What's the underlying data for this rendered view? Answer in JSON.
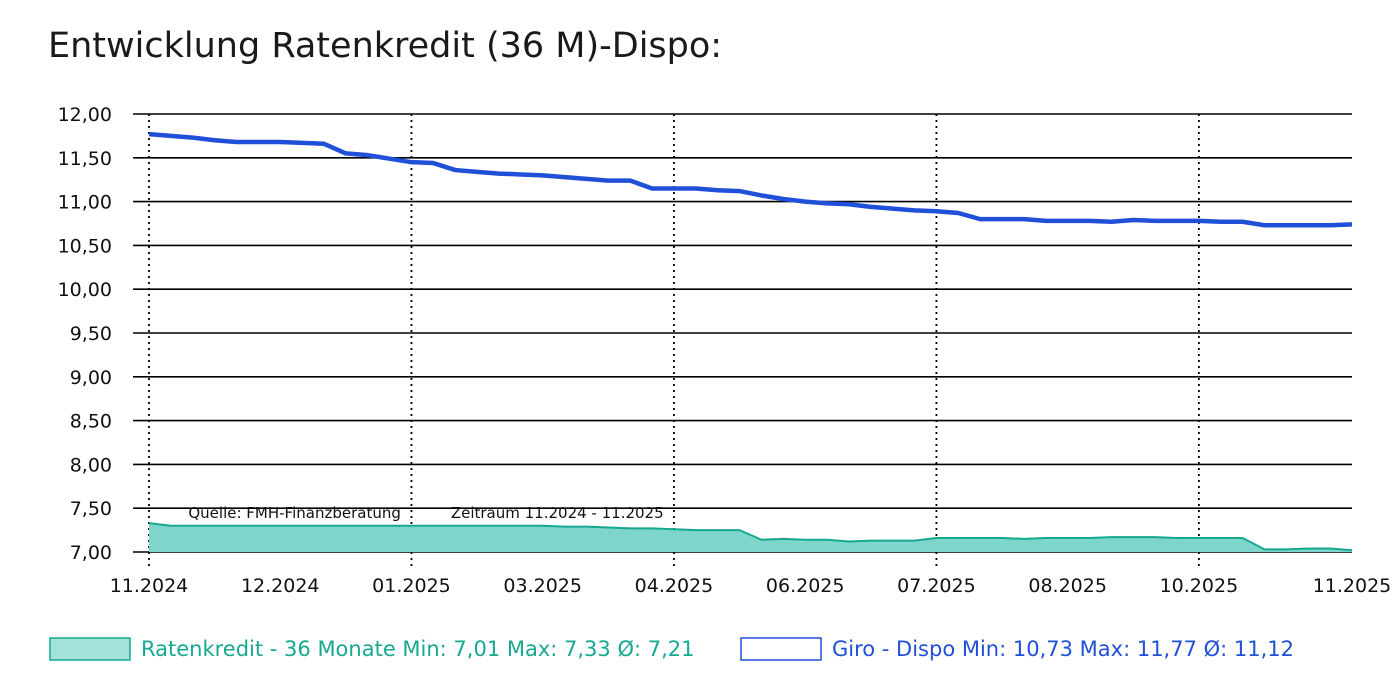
{
  "colors": {
    "series1_line": "#17a890",
    "series1_fill": "#7dd6c9",
    "series2_line": "#2050d8",
    "grid": "#000000",
    "text": "#111111"
  },
  "chart_data": {
    "type": "area",
    "title": "Entwicklung Ratenkredit (36 M)-Dispo:",
    "xlabel": "",
    "ylabel": "",
    "ylim": [
      7.0,
      12.0
    ],
    "y_ticks": [
      {
        "value": 12.0,
        "label": "12,00"
      },
      {
        "value": 11.5,
        "label": "11,50"
      },
      {
        "value": 11.0,
        "label": "11,00"
      },
      {
        "value": 10.5,
        "label": "10,50"
      },
      {
        "value": 10.0,
        "label": "10,00"
      },
      {
        "value": 9.5,
        "label": "9,50"
      },
      {
        "value": 9.0,
        "label": "9,00"
      },
      {
        "value": 8.5,
        "label": "8,50"
      },
      {
        "value": 8.0,
        "label": "8,00"
      },
      {
        "value": 7.5,
        "label": "7,50"
      },
      {
        "value": 7.0,
        "label": "7,00"
      }
    ],
    "x_range": [
      0,
      55
    ],
    "x_ticks": [
      {
        "x": 0,
        "label": "11.2024"
      },
      {
        "x": 6,
        "label": "12.2024"
      },
      {
        "x": 12,
        "label": "01.2025"
      },
      {
        "x": 18,
        "label": "03.2025"
      },
      {
        "x": 24,
        "label": "04.2025"
      },
      {
        "x": 30,
        "label": "06.2025"
      },
      {
        "x": 36,
        "label": "07.2025"
      },
      {
        "x": 42,
        "label": "08.2025"
      },
      {
        "x": 48,
        "label": "10.2025"
      },
      {
        "x": 55,
        "label": "11.2025"
      }
    ],
    "vgrid_x": [
      0,
      12,
      24,
      36,
      48
    ],
    "annotations": [
      {
        "text": "Quelle: FMH-Finanzberatung",
        "x": 1.8,
        "y": 7.33
      },
      {
        "text": "Zeitraum 11.2024 - 11.2025",
        "x": 13.8,
        "y": 7.33
      }
    ],
    "series": [
      {
        "name": "Ratenkredit - 36 Monate",
        "style": "area",
        "legend_text": "Ratenkredit - 36 Monate Min: 7,01 Max: 7,33 Ø: 7,21",
        "min": "7,01",
        "max": "7,33",
        "avg": "7,21",
        "x": [
          0,
          1,
          2,
          3,
          4,
          5,
          6,
          7,
          8,
          9,
          10,
          11,
          12,
          13,
          14,
          15,
          16,
          17,
          18,
          19,
          20,
          21,
          22,
          23,
          24,
          25,
          26,
          27,
          28,
          29,
          30,
          31,
          32,
          33,
          34,
          35,
          36,
          37,
          38,
          39,
          40,
          41,
          42,
          43,
          44,
          45,
          46,
          47,
          48,
          49,
          50,
          51,
          52,
          53,
          54,
          55
        ],
        "values": [
          7.33,
          7.3,
          7.3,
          7.3,
          7.3,
          7.3,
          7.3,
          7.3,
          7.3,
          7.3,
          7.3,
          7.3,
          7.3,
          7.3,
          7.3,
          7.3,
          7.3,
          7.3,
          7.3,
          7.29,
          7.29,
          7.28,
          7.27,
          7.27,
          7.26,
          7.25,
          7.25,
          7.25,
          7.14,
          7.15,
          7.14,
          7.14,
          7.12,
          7.13,
          7.13,
          7.13,
          7.16,
          7.16,
          7.16,
          7.16,
          7.15,
          7.16,
          7.16,
          7.16,
          7.17,
          7.17,
          7.17,
          7.16,
          7.16,
          7.16,
          7.16,
          7.03,
          7.03,
          7.04,
          7.04,
          7.02
        ]
      },
      {
        "name": "Giro - Dispo",
        "style": "line",
        "legend_text": "Giro - Dispo Min: 10,73 Max: 11,77 Ø: 11,12",
        "min": "10,73",
        "max": "11,77",
        "avg": "11,12",
        "x": [
          0,
          1,
          2,
          3,
          4,
          5,
          6,
          7,
          8,
          9,
          10,
          11,
          12,
          13,
          14,
          15,
          16,
          17,
          18,
          19,
          20,
          21,
          22,
          23,
          24,
          25,
          26,
          27,
          28,
          29,
          30,
          31,
          32,
          33,
          34,
          35,
          36,
          37,
          38,
          39,
          40,
          41,
          42,
          43,
          44,
          45,
          46,
          47,
          48,
          49,
          50,
          51,
          52,
          53,
          54,
          55
        ],
        "values": [
          11.77,
          11.75,
          11.73,
          11.7,
          11.68,
          11.68,
          11.68,
          11.67,
          11.66,
          11.55,
          11.53,
          11.49,
          11.45,
          11.44,
          11.36,
          11.34,
          11.32,
          11.31,
          11.3,
          11.28,
          11.26,
          11.24,
          11.24,
          11.15,
          11.15,
          11.15,
          11.13,
          11.12,
          11.07,
          11.03,
          11.0,
          10.98,
          10.97,
          10.94,
          10.92,
          10.9,
          10.89,
          10.87,
          10.8,
          10.8,
          10.8,
          10.78,
          10.78,
          10.78,
          10.77,
          10.79,
          10.78,
          10.78,
          10.78,
          10.77,
          10.77,
          10.73,
          10.73,
          10.73,
          10.73,
          10.74
        ]
      }
    ]
  }
}
